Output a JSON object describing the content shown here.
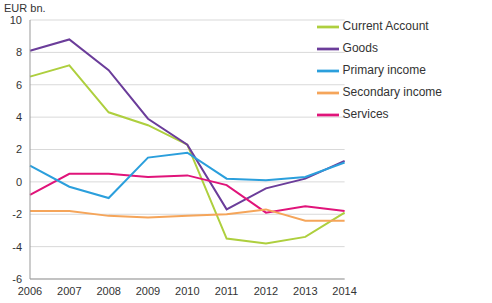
{
  "chart_data": {
    "type": "line",
    "y_label": "EUR bn.",
    "categories": [
      "2006",
      "2007",
      "2008",
      "2009",
      "2010",
      "2011",
      "2012",
      "2013",
      "2014"
    ],
    "series": [
      {
        "name": "Current Account",
        "color": "#aecf3e",
        "values": [
          6.5,
          7.2,
          4.3,
          3.5,
          2.3,
          -3.5,
          -3.8,
          -3.4,
          -1.9
        ]
      },
      {
        "name": "Goods",
        "color": "#6b3d9a",
        "values": [
          8.1,
          8.8,
          6.9,
          3.9,
          2.3,
          -1.7,
          -0.4,
          0.2,
          1.3
        ]
      },
      {
        "name": "Services",
        "color": "#e0147a",
        "values": [
          -0.8,
          0.5,
          0.5,
          0.3,
          0.4,
          -0.2,
          -1.9,
          -1.5,
          -1.8
        ]
      },
      {
        "name": "Primary income",
        "color": "#2b9fdc",
        "values": [
          1.0,
          -0.3,
          -1.0,
          1.5,
          1.8,
          0.2,
          0.1,
          0.3,
          1.2
        ]
      },
      {
        "name": "Secondary income",
        "color": "#f5a55a",
        "values": [
          -1.8,
          -1.8,
          -2.1,
          -2.2,
          -2.1,
          -2.0,
          -1.7,
          -2.4,
          -2.4
        ]
      }
    ],
    "ylim": [
      -6,
      10
    ],
    "yticks": [
      -6,
      -4,
      -2,
      0,
      2,
      4,
      6,
      8,
      10
    ],
    "grid": true,
    "legend": "upper right"
  }
}
